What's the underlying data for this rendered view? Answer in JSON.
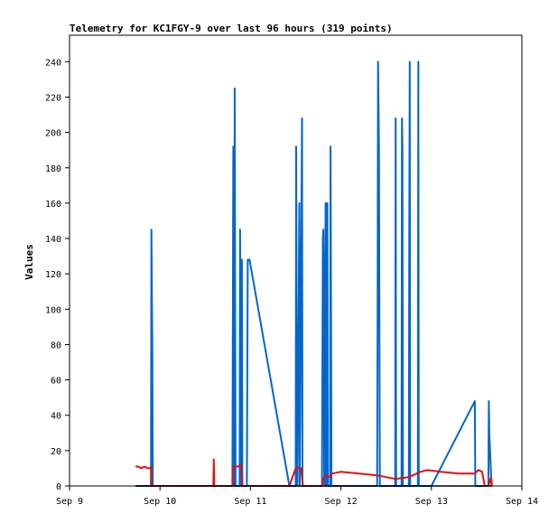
{
  "chart_data": {
    "type": "line",
    "title": "Telemetry for KC1FGY-9 over last 96 hours (319 points)",
    "xlabel": "",
    "ylabel": "Values",
    "x_ticks": [
      "Sep 9",
      "Sep 10",
      "Sep 11",
      "Sep 12",
      "Sep 13",
      "Sep 14"
    ],
    "xlim": [
      0,
      5
    ],
    "ylim": [
      0,
      255
    ],
    "y_ticks": [
      0,
      20,
      40,
      60,
      80,
      100,
      120,
      140,
      160,
      180,
      200,
      220,
      240
    ],
    "grid": false,
    "x_unit": "days after Sep 9 00:00",
    "series": [
      {
        "color": "#0066cc",
        "points": [
          [
            0.73,
            0
          ],
          [
            0.9,
            0
          ],
          [
            0.905,
            145
          ],
          [
            0.91,
            110
          ],
          [
            0.915,
            80
          ],
          [
            0.92,
            0
          ],
          [
            1.8,
            0
          ],
          [
            1.805,
            95
          ],
          [
            1.81,
            192
          ],
          [
            1.815,
            100
          ],
          [
            1.82,
            0
          ],
          [
            1.825,
            225
          ],
          [
            1.83,
            110
          ],
          [
            1.835,
            0
          ],
          [
            1.88,
            0
          ],
          [
            1.885,
            145
          ],
          [
            1.89,
            60
          ],
          [
            1.895,
            0
          ],
          [
            1.905,
            128
          ],
          [
            1.91,
            0
          ],
          [
            1.96,
            0
          ],
          [
            1.97,
            128
          ],
          [
            1.99,
            128
          ],
          [
            2.43,
            0
          ],
          [
            2.5,
            0
          ],
          [
            2.505,
            192
          ],
          [
            2.51,
            100
          ],
          [
            2.52,
            0
          ],
          [
            2.54,
            160
          ],
          [
            2.545,
            0
          ],
          [
            2.57,
            208
          ],
          [
            2.575,
            0
          ],
          [
            2.58,
            0
          ],
          [
            2.79,
            0
          ],
          [
            2.8,
            140
          ],
          [
            2.805,
            145
          ],
          [
            2.81,
            100
          ],
          [
            2.815,
            0
          ],
          [
            2.83,
            160
          ],
          [
            2.835,
            0
          ],
          [
            2.85,
            160
          ],
          [
            2.855,
            0
          ],
          [
            2.88,
            0
          ],
          [
            2.885,
            192
          ],
          [
            2.89,
            100
          ],
          [
            2.895,
            0
          ],
          [
            3.4,
            0
          ],
          [
            3.405,
            95
          ],
          [
            3.41,
            240
          ],
          [
            3.42,
            192
          ],
          [
            3.43,
            0
          ],
          [
            3.6,
            0
          ],
          [
            3.605,
            208
          ],
          [
            3.61,
            0
          ],
          [
            3.67,
            0
          ],
          [
            3.675,
            208
          ],
          [
            3.68,
            190
          ],
          [
            3.685,
            0
          ],
          [
            3.75,
            0
          ],
          [
            3.755,
            145
          ],
          [
            3.76,
            240
          ],
          [
            3.765,
            0
          ],
          [
            3.85,
            0
          ],
          [
            3.855,
            240
          ],
          [
            3.86,
            0
          ],
          [
            4.0,
            0
          ],
          [
            4.48,
            48
          ],
          [
            4.485,
            0
          ],
          [
            4.63,
            0
          ],
          [
            4.635,
            48
          ],
          [
            4.64,
            30
          ],
          [
            4.665,
            0
          ],
          [
            4.67,
            0
          ]
        ]
      },
      {
        "color": "#e01010",
        "points": [
          [
            0.73,
            11
          ],
          [
            0.76,
            11
          ],
          [
            0.79,
            10
          ],
          [
            0.83,
            11
          ],
          [
            0.86,
            10
          ],
          [
            0.89,
            10
          ],
          [
            0.9,
            11
          ],
          [
            0.905,
            0
          ],
          [
            0.92,
            0
          ],
          [
            1.59,
            0
          ],
          [
            1.595,
            15
          ],
          [
            1.6,
            0
          ],
          [
            1.62,
            0
          ],
          [
            1.8,
            0
          ],
          [
            1.81,
            11
          ],
          [
            1.86,
            11
          ],
          [
            1.89,
            12
          ],
          [
            1.9,
            11
          ],
          [
            1.91,
            0
          ],
          [
            1.95,
            0
          ],
          [
            2.43,
            0
          ],
          [
            2.5,
            10
          ],
          [
            2.56,
            10
          ],
          [
            2.58,
            0
          ],
          [
            2.6,
            0
          ],
          [
            2.79,
            0
          ],
          [
            2.8,
            4
          ],
          [
            2.83,
            6
          ],
          [
            2.88,
            5
          ],
          [
            2.9,
            7
          ],
          [
            3.0,
            8
          ],
          [
            3.2,
            7
          ],
          [
            3.4,
            6
          ],
          [
            3.5,
            5
          ],
          [
            3.6,
            4
          ],
          [
            3.75,
            5
          ],
          [
            3.88,
            8
          ],
          [
            3.95,
            9
          ],
          [
            4.1,
            8
          ],
          [
            4.3,
            7
          ],
          [
            4.48,
            7
          ],
          [
            4.52,
            9
          ],
          [
            4.56,
            8
          ],
          [
            4.59,
            0
          ],
          [
            4.63,
            0
          ],
          [
            4.66,
            5
          ],
          [
            4.67,
            0
          ]
        ]
      },
      {
        "color": "#000000",
        "points": [
          [
            0.73,
            0
          ],
          [
            4.67,
            0
          ]
        ]
      }
    ]
  }
}
